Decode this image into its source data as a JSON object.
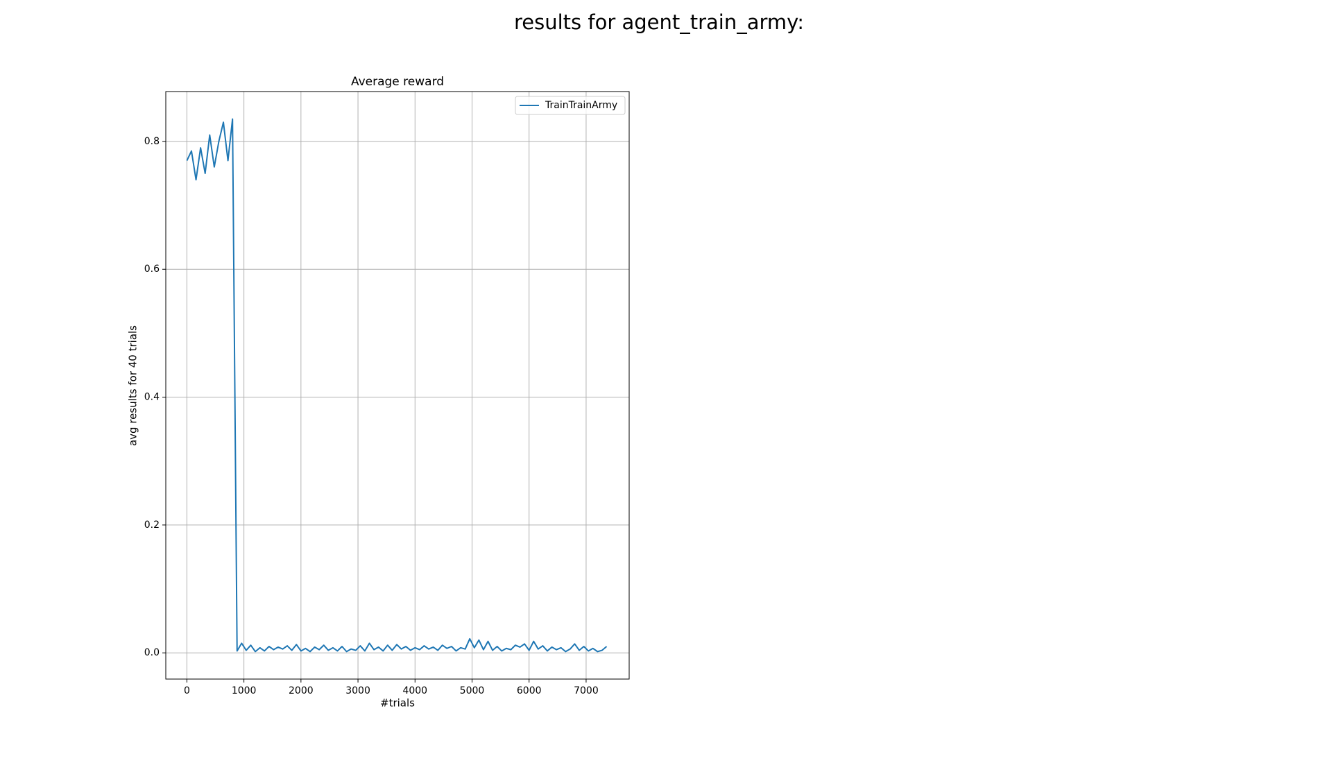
{
  "chart_data": {
    "type": "line",
    "suptitle": "results for agent_train_army:",
    "title": "Average reward",
    "xlabel": "#trials",
    "ylabel": "avg results for 40 trials",
    "x": [
      0,
      80,
      160,
      240,
      320,
      400,
      480,
      560,
      640,
      720,
      800,
      880,
      960,
      1040,
      1120,
      1200,
      1280,
      1360,
      1440,
      1520,
      1600,
      1680,
      1760,
      1840,
      1920,
      2000,
      2080,
      2160,
      2240,
      2320,
      2400,
      2480,
      2560,
      2640,
      2720,
      2800,
      2880,
      2960,
      3040,
      3120,
      3200,
      3280,
      3360,
      3440,
      3520,
      3600,
      3680,
      3760,
      3840,
      3920,
      4000,
      4080,
      4160,
      4240,
      4320,
      4400,
      4480,
      4560,
      4640,
      4720,
      4800,
      4880,
      4960,
      5040,
      5120,
      5200,
      5280,
      5360,
      5440,
      5520,
      5600,
      5680,
      5760,
      5840,
      5920,
      6000,
      6080,
      6160,
      6240,
      6320,
      6400,
      6480,
      6560,
      6640,
      6720,
      6800,
      6880,
      6960,
      7040,
      7120,
      7200,
      7280,
      7360
    ],
    "series": [
      {
        "name": "TrainTrainArmy",
        "color": "#1f77b4",
        "values": [
          0.77,
          0.785,
          0.74,
          0.79,
          0.75,
          0.81,
          0.76,
          0.8,
          0.83,
          0.77,
          0.835,
          0.003,
          0.015,
          0.004,
          0.012,
          0.002,
          0.008,
          0.003,
          0.01,
          0.005,
          0.009,
          0.006,
          0.011,
          0.004,
          0.013,
          0.003,
          0.007,
          0.002,
          0.009,
          0.005,
          0.012,
          0.004,
          0.008,
          0.003,
          0.01,
          0.002,
          0.006,
          0.004,
          0.011,
          0.003,
          0.015,
          0.005,
          0.009,
          0.003,
          0.012,
          0.004,
          0.013,
          0.006,
          0.01,
          0.004,
          0.008,
          0.005,
          0.011,
          0.006,
          0.009,
          0.004,
          0.012,
          0.007,
          0.01,
          0.003,
          0.008,
          0.006,
          0.022,
          0.008,
          0.02,
          0.005,
          0.018,
          0.004,
          0.01,
          0.003,
          0.007,
          0.005,
          0.012,
          0.009,
          0.014,
          0.004,
          0.018,
          0.006,
          0.011,
          0.003,
          0.009,
          0.005,
          0.008,
          0.002,
          0.006,
          0.014,
          0.004,
          0.01,
          0.003,
          0.007,
          0.002,
          0.004,
          0.01
        ]
      }
    ],
    "xlim": [
      -370,
      7755
    ],
    "ylim": [
      -0.041,
      0.878
    ],
    "xticks": [
      0,
      1000,
      2000,
      3000,
      4000,
      5000,
      6000,
      7000
    ],
    "yticks": [
      {
        "value": 0,
        "label": "0.0"
      },
      {
        "value": 0.2,
        "label": "0.2"
      },
      {
        "value": 0.4,
        "label": "0.4"
      },
      {
        "value": 0.6,
        "label": "0.6"
      },
      {
        "value": 0.8,
        "label": "0.8"
      }
    ],
    "grid": true,
    "legend": "upper right"
  }
}
